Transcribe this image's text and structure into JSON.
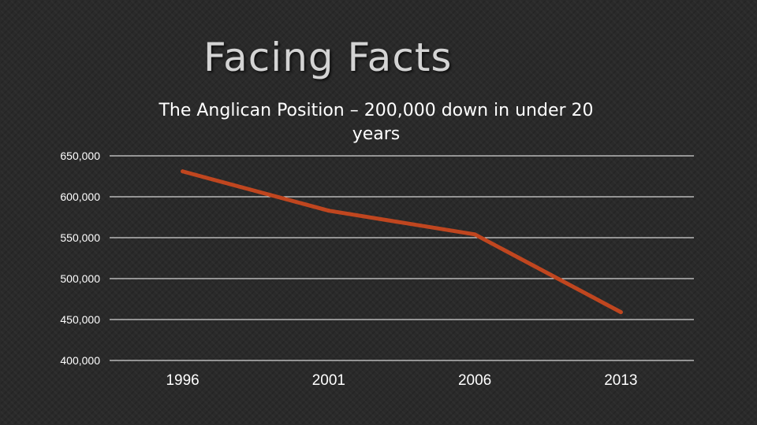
{
  "slide": {
    "title": "Facing Facts"
  },
  "colors": {
    "background": "#2a2a2a",
    "line": "#c0461f",
    "grid": "#ffffff",
    "text": "#ffffff"
  },
  "chart_data": {
    "type": "line",
    "title_lines": [
      "The Anglican Position – 200,000 down in under 20",
      "years"
    ],
    "categories": [
      "1996",
      "2001",
      "2006",
      "2013"
    ],
    "series": [
      {
        "values": [
          631000,
          583000,
          554000,
          459000
        ]
      }
    ],
    "ylim": [
      400000,
      650000
    ],
    "y_ticks": [
      650000,
      600000,
      550000,
      500000,
      450000,
      400000
    ],
    "y_tick_labels": [
      "650,000",
      "600,000",
      "550,000",
      "500,000",
      "450,000",
      "400,000"
    ],
    "grid": true,
    "legend": "none"
  }
}
